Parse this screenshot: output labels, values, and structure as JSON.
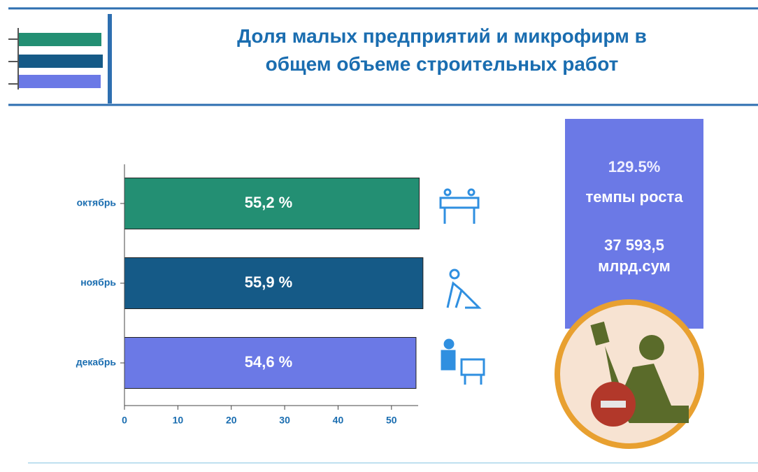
{
  "chart_data": {
    "type": "hbar",
    "title": "Доля малых предприятий и микрофирм в\nобщем объеме строительных работ",
    "categories": [
      "октябрь",
      "ноябрь",
      "декабрь"
    ],
    "values": [
      55.2,
      55.9,
      54.6
    ],
    "value_labels": [
      "55,2 %",
      "55,9 %",
      "54,6 %"
    ],
    "colors": [
      "#238f73",
      "#155a87",
      "#6b79e6"
    ],
    "xlim": [
      0,
      55
    ],
    "xticks": [
      0,
      10,
      20,
      30,
      40,
      50
    ]
  },
  "panel": {
    "rate": "129.5%",
    "rate_label": "темпы роста",
    "volume": "37 593,5",
    "unit": "млрд.сум"
  }
}
